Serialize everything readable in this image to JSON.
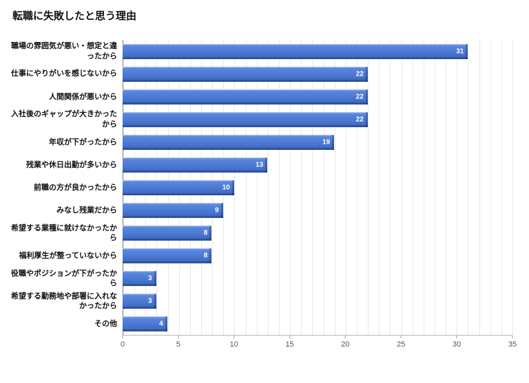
{
  "page": {
    "title": "転職に失敗したと思う理由"
  },
  "chart_data": {
    "type": "bar",
    "orientation": "horizontal",
    "title": "転職に失敗したと思う理由",
    "categories": [
      "職場の雰囲気が悪い・想定と違ったから",
      "仕事にやりがいを感じないから",
      "人間関係が悪いから",
      "入社後のギャップが大きかったから",
      "年収が下がったから",
      "残業や休日出勤が多いから",
      "前職の方が良かったから",
      "みなし残業だから",
      "希望する業種に就けなかったから",
      "福利厚生が整っていないから",
      "役職やポジションが下がったから",
      "希望する勤務地や部署に入れなかったから",
      "その他"
    ],
    "values": [
      31,
      22,
      22,
      22,
      19,
      13,
      10,
      9,
      8,
      8,
      3,
      3,
      4
    ],
    "xlim": [
      0,
      35
    ],
    "x_ticks": [
      0,
      5,
      10,
      15,
      20,
      25,
      30,
      35
    ],
    "grid": "minor-vertical-every-1",
    "legend": "none",
    "bar_color": "#4a77d2",
    "bar_style": "3d-bevel",
    "value_label_color": "#ffffff",
    "xlabel": "",
    "ylabel": ""
  }
}
